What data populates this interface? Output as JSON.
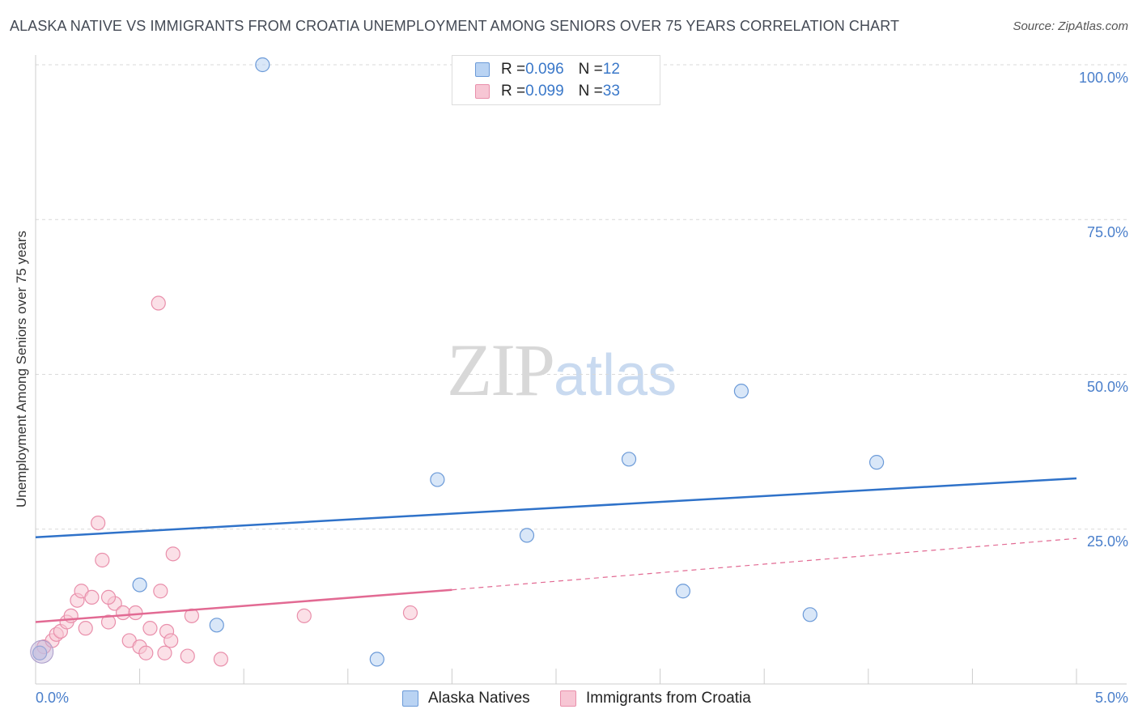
{
  "title": "ALASKA NATIVE VS IMMIGRANTS FROM CROATIA UNEMPLOYMENT AMONG SENIORS OVER 75 YEARS CORRELATION CHART",
  "source": "Source: ZipAtlas.com",
  "watermark": {
    "zip": "ZIP",
    "atlas": "atlas"
  },
  "legend": {
    "rows": [
      {
        "r_label": "R = ",
        "r_value": "0.096",
        "n_label": "N = ",
        "n_value": "12"
      },
      {
        "r_label": "R = ",
        "r_value": "0.099",
        "n_label": "N = ",
        "n_value": "33"
      }
    ]
  },
  "colors": {
    "alaska_fill": "#b9d3f3",
    "alaska_stroke": "#6b9ad8",
    "alaska_line": "#2f72c9",
    "croatia_fill": "#f7c6d4",
    "croatia_stroke": "#e98fab",
    "croatia_line": "#e26a93",
    "grid": "#d9d9d9",
    "tick_text": "#4a7fcb"
  },
  "chart_data": {
    "type": "scatter",
    "title": "ALASKA NATIVE VS IMMIGRANTS FROM CROATIA UNEMPLOYMENT AMONG SENIORS OVER 75 YEARS CORRELATION CHART",
    "xlabel": "",
    "ylabel": "Unemployment Among Seniors over 75 years",
    "xlim": [
      0,
      5
    ],
    "ylim": [
      0,
      100
    ],
    "x_tick_labels": [
      "0.0%",
      "5.0%"
    ],
    "y_tick_labels": [
      "100.0%",
      "75.0%",
      "50.0%",
      "25.0%"
    ],
    "y_ticks": [
      100,
      75,
      50,
      25
    ],
    "grid": true,
    "series": [
      {
        "name": "Alaska Natives",
        "R": 0.096,
        "N": 12,
        "points": [
          [
            0.02,
            5.0
          ],
          [
            1.09,
            100.0
          ],
          [
            0.5,
            16.0
          ],
          [
            0.87,
            9.5
          ],
          [
            1.64,
            4.0
          ],
          [
            1.93,
            33.0
          ],
          [
            2.36,
            24.0
          ],
          [
            2.85,
            36.3
          ],
          [
            3.11,
            15.0
          ],
          [
            3.39,
            47.3
          ],
          [
            3.72,
            11.2
          ],
          [
            4.04,
            35.8
          ]
        ],
        "trend": {
          "x": [
            0,
            5
          ],
          "y": [
            23.7,
            33.2
          ],
          "style": "solid"
        }
      },
      {
        "name": "Immigrants from Croatia",
        "R": 0.099,
        "N": 33,
        "points": [
          [
            0.02,
            5.0
          ],
          [
            0.04,
            6.0
          ],
          [
            0.08,
            7.0
          ],
          [
            0.1,
            8.0
          ],
          [
            0.12,
            8.5
          ],
          [
            0.15,
            10.0
          ],
          [
            0.17,
            11.0
          ],
          [
            0.2,
            13.5
          ],
          [
            0.22,
            15.0
          ],
          [
            0.24,
            9.0
          ],
          [
            0.27,
            14.0
          ],
          [
            0.3,
            26.0
          ],
          [
            0.32,
            20.0
          ],
          [
            0.35,
            10.0
          ],
          [
            0.38,
            13.0
          ],
          [
            0.42,
            11.5
          ],
          [
            0.45,
            7.0
          ],
          [
            0.5,
            6.0
          ],
          [
            0.53,
            5.0
          ],
          [
            0.55,
            9.0
          ],
          [
            0.59,
            61.5
          ],
          [
            0.6,
            15.0
          ],
          [
            0.63,
            8.5
          ],
          [
            0.66,
            21.0
          ],
          [
            0.75,
            11.0
          ],
          [
            0.89,
            4.0
          ],
          [
            0.35,
            14.0
          ],
          [
            0.62,
            5.0
          ],
          [
            0.73,
            4.5
          ],
          [
            0.65,
            7.0
          ],
          [
            0.48,
            11.5
          ],
          [
            1.29,
            11.0
          ],
          [
            1.8,
            11.5
          ]
        ],
        "trend": {
          "x": [
            0,
            2.0,
            5
          ],
          "y": [
            10.0,
            15.2,
            23.5
          ],
          "style": "solid-then-dashed"
        }
      }
    ]
  },
  "bottom_legend": [
    {
      "label": "Alaska Natives"
    },
    {
      "label": "Immigrants from Croatia"
    }
  ]
}
